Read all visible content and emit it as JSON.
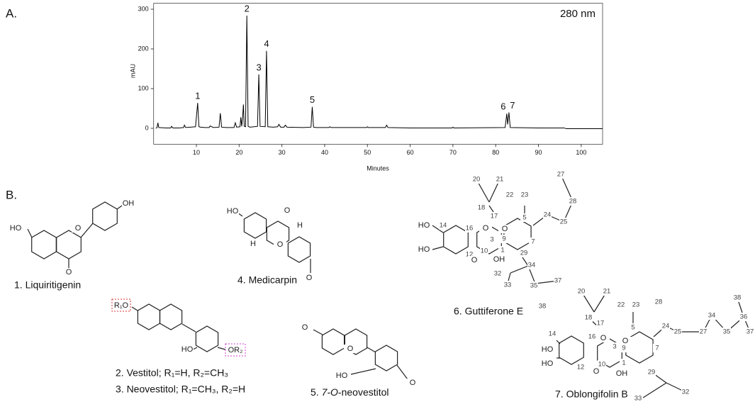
{
  "panel_labels": [
    "A.",
    "B."
  ],
  "chart_data": {
    "type": "line",
    "annotation": "280 nm",
    "y_label": "mAU",
    "x_label": "Minutes",
    "color": "#000000",
    "xlim": [
      0,
      105
    ],
    "ylim": [
      -40,
      315
    ],
    "xticks": [
      10,
      20,
      30,
      40,
      50,
      60,
      70,
      80,
      90,
      100
    ],
    "yticks": [
      0,
      100,
      200,
      300
    ],
    "grid": false,
    "x": [
      0.5,
      0.8,
      1.0,
      1.2,
      3,
      4,
      4.2,
      4.5,
      6,
      7,
      7.2,
      7.5,
      9.8,
      10.3,
      10.6,
      11,
      12,
      13,
      13.2,
      14,
      15.3,
      15.6,
      15.9,
      17,
      18.8,
      19.1,
      19.4,
      20.2,
      20.4,
      20.6,
      20.8,
      21.0,
      21.2,
      21.5,
      21.8,
      22.1,
      22.5,
      23.5,
      24.3,
      24.6,
      24.9,
      26.1,
      26.4,
      26.7,
      28,
      29,
      29.3,
      29.7,
      30.5,
      30.8,
      31.2,
      35,
      36.8,
      37.1,
      37.4,
      38,
      41,
      41.2,
      41.5,
      49.8,
      50,
      50.2,
      54.2,
      54.5,
      54.8,
      60,
      69.8,
      70,
      70.2,
      82.2,
      82.6,
      82.8,
      83.1,
      83.4,
      90,
      96,
      96.5,
      100,
      105
    ],
    "values": [
      0,
      2,
      14,
      2,
      1,
      1,
      5,
      1,
      1,
      2,
      8,
      2,
      4,
      64,
      4,
      3,
      2,
      2,
      6,
      2,
      3,
      38,
      3,
      2,
      2,
      14,
      3,
      4,
      28,
      5,
      25,
      60,
      5,
      4,
      284,
      5,
      3,
      4,
      5,
      136,
      5,
      4,
      195,
      4,
      3,
      4,
      10,
      3,
      3,
      8,
      3,
      2,
      3,
      54,
      3,
      2,
      2,
      4,
      2,
      2,
      4,
      2,
      2,
      8,
      2,
      1,
      1,
      3,
      1,
      2,
      37,
      10,
      40,
      2,
      1,
      1,
      -1,
      -1,
      -1
    ],
    "peak_labels": [
      {
        "label": "1",
        "x": 10.3,
        "y": 64
      },
      {
        "label": "2",
        "x": 21.8,
        "y": 284
      },
      {
        "label": "3",
        "x": 24.6,
        "y": 136
      },
      {
        "label": "4",
        "x": 26.4,
        "y": 195
      },
      {
        "label": "5",
        "x": 37.1,
        "y": 54
      },
      {
        "label": "6",
        "x": 82.6,
        "y": 37
      },
      {
        "label": "7",
        "x": 83.1,
        "y": 40
      }
    ]
  },
  "structures": [
    {
      "captions": [
        "1. Liquiritigenin"
      ],
      "atoms": [
        "HO",
        "O",
        "O",
        "OH"
      ]
    },
    {
      "captions": [
        "4. Medicarpin"
      ],
      "atoms": [
        "HO",
        "O",
        "H",
        "H",
        "O",
        "O"
      ]
    },
    {
      "captions": [
        "2. Vestitol; R₁=H, R₂=CH₃",
        "3. Neovestitol; R₁=CH₃, R₂=H"
      ],
      "atoms": [
        "R₁O",
        "HO",
        "OR₂"
      ]
    },
    {
      "captions": [
        "5. ",
        "7-O",
        "-neovestitol"
      ],
      "atoms": [
        "O",
        "O",
        "HO",
        "O"
      ]
    },
    {
      "captions": [
        "6. Guttiferone E"
      ],
      "atoms": [
        "20",
        "21",
        "18",
        "17",
        "22",
        "23",
        "5",
        "27",
        "24",
        "25",
        "28",
        "HO",
        "14",
        "16",
        "O",
        "O",
        "3",
        "9",
        "7",
        "HO",
        "10",
        "12",
        "1",
        "29",
        "O",
        "OH",
        "32",
        "34",
        "33",
        "35",
        "37",
        "38"
      ]
    },
    {
      "captions": [
        "7. Oblongifolin B"
      ],
      "atoms": [
        "20",
        "21",
        "38",
        "22",
        "23",
        "28",
        "18",
        "17",
        "5",
        "36",
        "24",
        "25",
        "27",
        "34",
        "35",
        "37",
        "14",
        "16",
        "O",
        "O",
        "HO",
        "3",
        "9",
        "7",
        "HO",
        "10",
        "12",
        "1",
        "29",
        "O",
        "OH",
        "32",
        "33"
      ]
    }
  ]
}
